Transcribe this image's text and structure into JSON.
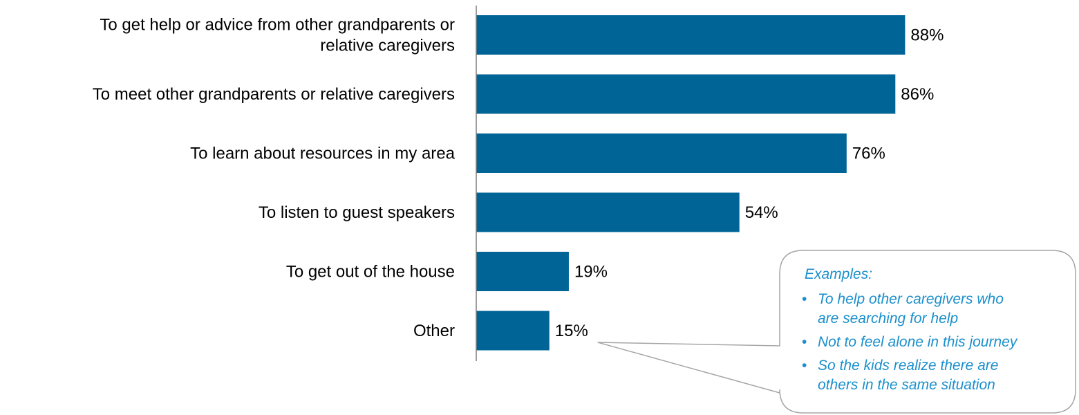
{
  "colors": {
    "bar": "#006496",
    "axis": "#7f7f7f",
    "callout_text": "#1a8fcc",
    "callout_border": "#a6a6a6"
  },
  "chart_data": {
    "type": "bar",
    "orientation": "horizontal",
    "categories": [
      [
        "To get help or advice from other grandparents or",
        "relative caregivers"
      ],
      [
        "To meet other grandparents or relative caregivers"
      ],
      [
        "To learn about resources in my area"
      ],
      [
        "To listen to guest speakers"
      ],
      [
        "To get out of the house"
      ],
      [
        "Other"
      ]
    ],
    "values": [
      88,
      86,
      76,
      54,
      19,
      15
    ],
    "value_labels": [
      "88%",
      "86%",
      "76%",
      "54%",
      "19%",
      "15%"
    ],
    "unit": "%",
    "xlim": [
      0,
      100
    ],
    "grid": false,
    "legend": "none"
  },
  "callout": {
    "heading": "Examples:",
    "bullet_glyph": "•",
    "items": [
      [
        "To help other caregivers who",
        "are searching for help"
      ],
      [
        "Not to feel alone in this journey"
      ],
      [
        "So the kids realize there are",
        "others in the same situation"
      ]
    ]
  }
}
